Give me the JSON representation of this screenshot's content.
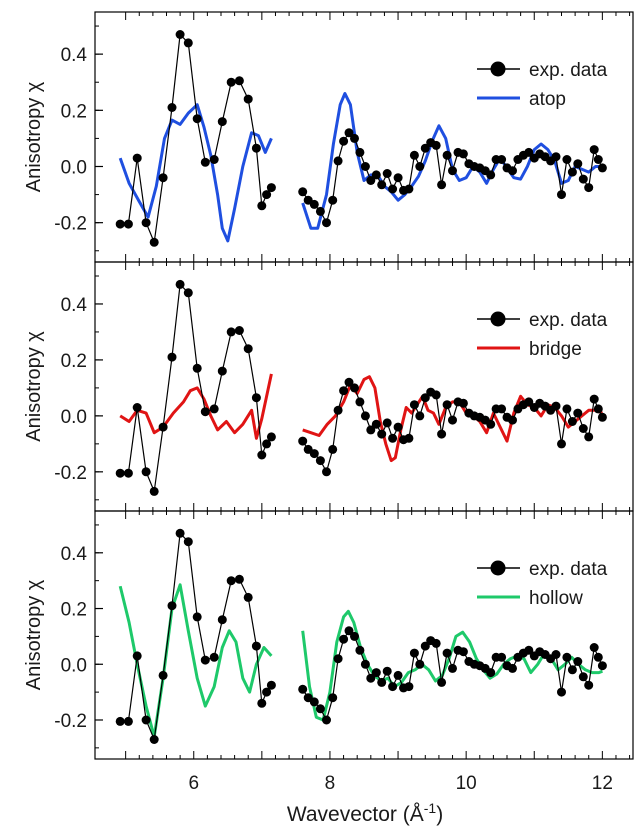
{
  "chart_data": {
    "type": "line",
    "xlabel": "Wavevector (Å-1)",
    "ylabel": "Anisotropy χ",
    "xlim": [
      4.55,
      12.45
    ],
    "ylim": [
      -0.34,
      0.55
    ],
    "x_ticks": [
      6,
      8,
      10,
      12
    ],
    "y_ticks": [
      -0.2,
      0.0,
      0.2,
      0.4
    ],
    "y_tick_labels": [
      "-0.2",
      "0.0",
      "0.2",
      "0.4"
    ],
    "grid": false,
    "legend_position": "top-right",
    "exp_data": {
      "name": "exp. data",
      "color": "#000000",
      "segments": [
        [
          [
            4.92,
            -0.205
          ],
          [
            5.04,
            -0.205
          ],
          [
            5.17,
            0.03
          ],
          [
            5.3,
            -0.2
          ],
          [
            5.42,
            -0.27
          ],
          [
            5.55,
            -0.04
          ],
          [
            5.68,
            0.21
          ],
          [
            5.8,
            0.47
          ],
          [
            5.92,
            0.44
          ],
          [
            6.05,
            0.17
          ],
          [
            6.17,
            0.015
          ],
          [
            6.3,
            0.025
          ],
          [
            6.42,
            0.16
          ],
          [
            6.55,
            0.3
          ],
          [
            6.67,
            0.305
          ],
          [
            6.8,
            0.24
          ],
          [
            6.92,
            0.065
          ],
          [
            7.0,
            -0.14
          ],
          [
            7.07,
            -0.1
          ],
          [
            7.14,
            -0.075
          ]
        ],
        [
          [
            7.6,
            -0.09
          ],
          [
            7.68,
            -0.12
          ],
          [
            7.77,
            -0.135
          ],
          [
            7.86,
            -0.16
          ],
          [
            7.95,
            -0.2
          ],
          [
            8.04,
            -0.12
          ],
          [
            8.12,
            0.02
          ],
          [
            8.2,
            0.09
          ],
          [
            8.28,
            0.12
          ],
          [
            8.36,
            0.1
          ],
          [
            8.44,
            0.05
          ],
          [
            8.52,
            0.0
          ],
          [
            8.6,
            -0.05
          ],
          [
            8.68,
            -0.03
          ],
          [
            8.76,
            -0.065
          ],
          [
            8.84,
            -0.025
          ],
          [
            8.92,
            -0.08
          ],
          [
            9.0,
            -0.04
          ],
          [
            9.08,
            -0.085
          ],
          [
            9.16,
            -0.08
          ],
          [
            9.24,
            0.04
          ],
          [
            9.32,
            0.0
          ],
          [
            9.4,
            0.065
          ],
          [
            9.48,
            0.085
          ],
          [
            9.56,
            0.075
          ],
          [
            9.64,
            -0.065
          ],
          [
            9.72,
            0.04
          ],
          [
            9.8,
            -0.015
          ],
          [
            9.88,
            0.05
          ],
          [
            9.96,
            0.045
          ],
          [
            10.04,
            0.01
          ],
          [
            10.12,
            0.0
          ],
          [
            10.2,
            -0.005
          ],
          [
            10.28,
            -0.015
          ],
          [
            10.36,
            -0.03
          ],
          [
            10.44,
            0.025
          ],
          [
            10.52,
            0.025
          ],
          [
            10.6,
            -0.005
          ],
          [
            10.68,
            -0.015
          ],
          [
            10.76,
            0.025
          ],
          [
            10.84,
            0.04
          ],
          [
            10.92,
            0.05
          ],
          [
            11.0,
            0.03
          ],
          [
            11.08,
            0.045
          ],
          [
            11.16,
            0.035
          ],
          [
            11.24,
            0.02
          ],
          [
            11.32,
            0.035
          ],
          [
            11.4,
            -0.1
          ],
          [
            11.48,
            0.025
          ],
          [
            11.56,
            -0.02
          ],
          [
            11.64,
            0.01
          ],
          [
            11.72,
            -0.045
          ],
          [
            11.8,
            -0.075
          ],
          [
            11.88,
            0.06
          ],
          [
            11.94,
            0.025
          ],
          [
            12.0,
            -0.005
          ]
        ]
      ]
    },
    "panels": [
      {
        "name": "atop",
        "color": "#1f4fe0",
        "segments": [
          [
            [
              4.92,
              0.03
            ],
            [
              5.05,
              -0.06
            ],
            [
              5.2,
              -0.125
            ],
            [
              5.33,
              -0.18
            ],
            [
              5.45,
              -0.07
            ],
            [
              5.57,
              0.1
            ],
            [
              5.68,
              0.165
            ],
            [
              5.8,
              0.15
            ],
            [
              5.92,
              0.19
            ],
            [
              6.05,
              0.22
            ],
            [
              6.15,
              0.14
            ],
            [
              6.25,
              0.04
            ],
            [
              6.35,
              -0.1
            ],
            [
              6.42,
              -0.22
            ],
            [
              6.5,
              -0.265
            ],
            [
              6.6,
              -0.15
            ],
            [
              6.72,
              0.0
            ],
            [
              6.85,
              0.12
            ],
            [
              6.95,
              0.11
            ],
            [
              7.05,
              0.05
            ],
            [
              7.14,
              0.1
            ]
          ],
          [
            [
              7.6,
              -0.13
            ],
            [
              7.72,
              -0.22
            ],
            [
              7.82,
              -0.22
            ],
            [
              7.95,
              -0.1
            ],
            [
              8.05,
              0.08
            ],
            [
              8.15,
              0.22
            ],
            [
              8.22,
              0.26
            ],
            [
              8.3,
              0.22
            ],
            [
              8.4,
              0.05
            ],
            [
              8.5,
              -0.05
            ],
            [
              8.6,
              -0.03
            ],
            [
              8.7,
              -0.03
            ],
            [
              8.8,
              -0.07
            ],
            [
              8.9,
              -0.09
            ],
            [
              9.0,
              -0.12
            ],
            [
              9.1,
              -0.1
            ],
            [
              9.2,
              -0.07
            ],
            [
              9.3,
              -0.035
            ],
            [
              9.4,
              0.02
            ],
            [
              9.5,
              0.09
            ],
            [
              9.6,
              0.145
            ],
            [
              9.7,
              0.1
            ],
            [
              9.8,
              -0.01
            ],
            [
              9.9,
              -0.05
            ],
            [
              10.0,
              -0.04
            ],
            [
              10.1,
              0.0
            ],
            [
              10.2,
              -0.02
            ],
            [
              10.3,
              -0.06
            ],
            [
              10.4,
              -0.01
            ],
            [
              10.5,
              0.03
            ],
            [
              10.6,
              -0.005
            ],
            [
              10.7,
              -0.04
            ],
            [
              10.8,
              -0.045
            ],
            [
              10.9,
              0.0
            ],
            [
              11.0,
              0.06
            ],
            [
              11.1,
              0.08
            ],
            [
              11.2,
              0.06
            ],
            [
              11.3,
              0.02
            ],
            [
              11.4,
              -0.06
            ],
            [
              11.5,
              -0.05
            ],
            [
              11.6,
              0.0
            ],
            [
              11.7,
              -0.01
            ],
            [
              11.8,
              -0.02
            ],
            [
              11.9,
              0.0
            ],
            [
              12.0,
              0.0
            ]
          ]
        ]
      },
      {
        "name": "bridge",
        "color": "#e01414",
        "segments": [
          [
            [
              4.92,
              0.0
            ],
            [
              5.05,
              -0.02
            ],
            [
              5.17,
              0.02
            ],
            [
              5.3,
              0.01
            ],
            [
              5.42,
              -0.06
            ],
            [
              5.55,
              -0.04
            ],
            [
              5.7,
              0.01
            ],
            [
              5.85,
              0.05
            ],
            [
              5.95,
              0.09
            ],
            [
              6.05,
              0.1
            ],
            [
              6.15,
              0.06
            ],
            [
              6.25,
              0.0
            ],
            [
              6.35,
              -0.05
            ],
            [
              6.48,
              -0.02
            ],
            [
              6.6,
              -0.06
            ],
            [
              6.72,
              -0.03
            ],
            [
              6.85,
              0.02
            ],
            [
              6.92,
              -0.08
            ],
            [
              7.0,
              -0.01
            ],
            [
              7.07,
              0.07
            ],
            [
              7.14,
              0.15
            ]
          ],
          [
            [
              7.6,
              -0.05
            ],
            [
              7.72,
              -0.06
            ],
            [
              7.84,
              -0.07
            ],
            [
              7.96,
              -0.03
            ],
            [
              8.08,
              0.0
            ],
            [
              8.2,
              0.05
            ],
            [
              8.3,
              0.11
            ],
            [
              8.4,
              0.08
            ],
            [
              8.5,
              0.13
            ],
            [
              8.58,
              0.14
            ],
            [
              8.66,
              0.1
            ],
            [
              8.74,
              -0.02
            ],
            [
              8.82,
              -0.1
            ],
            [
              8.9,
              -0.16
            ],
            [
              8.96,
              -0.15
            ],
            [
              9.04,
              -0.05
            ],
            [
              9.12,
              0.03
            ],
            [
              9.2,
              0.01
            ],
            [
              9.28,
              0.04
            ],
            [
              9.36,
              0.07
            ],
            [
              9.44,
              0.02
            ],
            [
              9.52,
              0.01
            ],
            [
              9.6,
              -0.03
            ],
            [
              9.7,
              0.03
            ],
            [
              9.8,
              0.05
            ],
            [
              9.9,
              0.05
            ],
            [
              10.0,
              0.01
            ],
            [
              10.1,
              0.0
            ],
            [
              10.2,
              -0.02
            ],
            [
              10.3,
              -0.06
            ],
            [
              10.4,
              0.01
            ],
            [
              10.5,
              -0.04
            ],
            [
              10.6,
              -0.09
            ],
            [
              10.7,
              0.01
            ],
            [
              10.8,
              0.07
            ],
            [
              10.9,
              0.04
            ],
            [
              11.0,
              0.03
            ],
            [
              11.1,
              0.0
            ],
            [
              11.2,
              0.04
            ],
            [
              11.3,
              0.03
            ],
            [
              11.4,
              0.0
            ],
            [
              11.5,
              -0.04
            ],
            [
              11.6,
              -0.02
            ],
            [
              11.7,
              0.0
            ],
            [
              11.8,
              0.02
            ],
            [
              11.9,
              0.02
            ],
            [
              12.0,
              0.01
            ]
          ]
        ]
      },
      {
        "name": "hollow",
        "color": "#1ec96a",
        "segments": [
          [
            [
              4.92,
              0.28
            ],
            [
              5.05,
              0.15
            ],
            [
              5.17,
              0.0
            ],
            [
              5.3,
              -0.15
            ],
            [
              5.42,
              -0.26
            ],
            [
              5.55,
              -0.05
            ],
            [
              5.68,
              0.2
            ],
            [
              5.8,
              0.285
            ],
            [
              5.92,
              0.12
            ],
            [
              6.05,
              -0.05
            ],
            [
              6.17,
              -0.15
            ],
            [
              6.3,
              -0.08
            ],
            [
              6.42,
              0.06
            ],
            [
              6.52,
              0.12
            ],
            [
              6.62,
              0.08
            ],
            [
              6.72,
              -0.05
            ],
            [
              6.82,
              -0.1
            ],
            [
              6.92,
              0.0
            ],
            [
              7.03,
              0.06
            ],
            [
              7.14,
              0.03
            ]
          ],
          [
            [
              7.6,
              0.12
            ],
            [
              7.7,
              -0.08
            ],
            [
              7.8,
              -0.19
            ],
            [
              7.9,
              -0.2
            ],
            [
              8.0,
              -0.1
            ],
            [
              8.1,
              0.08
            ],
            [
              8.2,
              0.17
            ],
            [
              8.27,
              0.19
            ],
            [
              8.35,
              0.15
            ],
            [
              8.45,
              0.06
            ],
            [
              8.55,
              0.0
            ],
            [
              8.65,
              -0.04
            ],
            [
              8.75,
              -0.06
            ],
            [
              8.85,
              -0.05
            ],
            [
              8.95,
              -0.08
            ],
            [
              9.05,
              -0.065
            ],
            [
              9.15,
              -0.03
            ],
            [
              9.25,
              -0.02
            ],
            [
              9.35,
              0.0
            ],
            [
              9.45,
              -0.02
            ],
            [
              9.55,
              -0.06
            ],
            [
              9.65,
              -0.04
            ],
            [
              9.75,
              0.02
            ],
            [
              9.85,
              0.1
            ],
            [
              9.95,
              0.115
            ],
            [
              10.05,
              0.08
            ],
            [
              10.15,
              0.02
            ],
            [
              10.25,
              -0.02
            ],
            [
              10.35,
              -0.05
            ],
            [
              10.45,
              -0.035
            ],
            [
              10.55,
              0.0
            ],
            [
              10.65,
              0.02
            ],
            [
              10.75,
              0.03
            ],
            [
              10.85,
              0.02
            ],
            [
              10.95,
              -0.03
            ],
            [
              11.05,
              0.0
            ],
            [
              11.15,
              0.04
            ],
            [
              11.25,
              0.02
            ],
            [
              11.35,
              -0.02
            ],
            [
              11.45,
              0.0
            ],
            [
              11.55,
              0.025
            ],
            [
              11.65,
              0.0
            ],
            [
              11.75,
              -0.02
            ],
            [
              11.85,
              -0.03
            ],
            [
              11.95,
              -0.03
            ],
            [
              12.0,
              -0.025
            ]
          ]
        ]
      }
    ]
  }
}
